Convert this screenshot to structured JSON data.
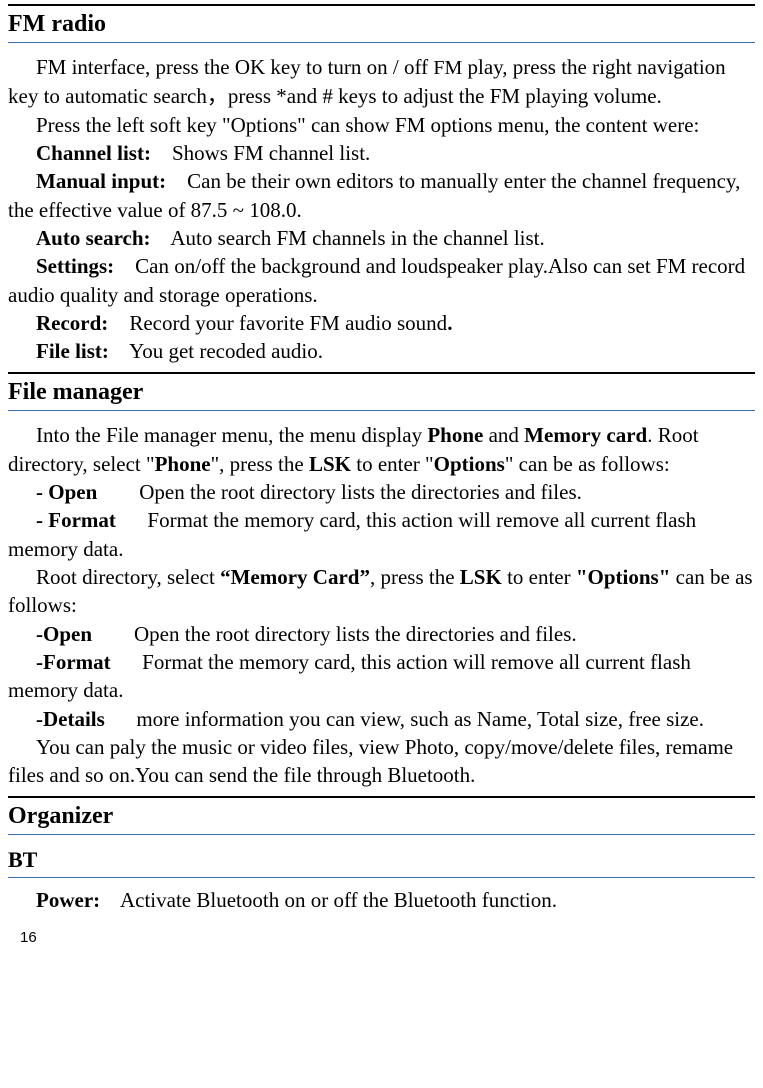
{
  "fm": {
    "title": "FM radio",
    "intro1a": "FM interface, press the OK key to turn on / off ",
    "intro1_small": "FM",
    "intro1b": " play, press the right navigation key to automatic search，press *and # keys to adjust the FM playing volume.",
    "intro2": "Press the left soft key \"Options\" can show FM options menu, the content were:",
    "items": [
      {
        "label": "Channel list:",
        "gap": "    ",
        "text": "Shows FM channel list."
      },
      {
        "label": "Manual input:",
        "gap": "    ",
        "text": "Can be their own editors to manually enter the channel frequency, the effective value of 87.5 ~ 108.0."
      },
      {
        "label": "Auto search:",
        "gap": "    ",
        "text": "Auto search FM channels in the channel list."
      },
      {
        "label": "Settings:",
        "gap": "    ",
        "text": "Can on/off the background and loudspeaker play.Also can set FM record audio quality and storage operations."
      },
      {
        "label": "Record:",
        "gap": "    ",
        "text": "Record your favorite FM audio sound",
        "trail_bold": "."
      },
      {
        "label": "File list:",
        "gap": "    ",
        "text": "You get recoded audio."
      }
    ]
  },
  "fileman": {
    "title": "File manager",
    "p1_a": "Into the File manager menu, the menu display ",
    "p1_b1": "Phone",
    "p1_c": " and ",
    "p1_b2": "Memory card",
    "p1_d": ". Root directory, select \"",
    "p1_b3": "Phone",
    "p1_e": "\", press the ",
    "p1_b4": "LSK",
    "p1_f": " to enter \"",
    "p1_b5": "Options",
    "p1_g": "\" can be as follows:",
    "open1_label": "- Open",
    "open1_gap": "        ",
    "open1_text": "Open the root directory lists the directories and files.",
    "format1_label": "- Format",
    "format1_gap": "      ",
    "format1_text": "Format the memory card, this action will remove all current flash memory data.",
    "p2_a": "Root directory, select ",
    "p2_b1": "“Memory Card”",
    "p2_b": ", press the ",
    "p2_b2": "LSK",
    "p2_c": " to enter ",
    "p2_b3": "\"Options\"",
    "p2_d": " can be as follows:",
    "open2_label": "-Open",
    "open2_gap": "        ",
    "open2_text": "Open the root directory lists the directories and files.",
    "format2_label": "-Format",
    "format2_gap": "      ",
    "format2_text": "Format the memory card, this action will remove all current flash memory data.",
    "details_label": "-Details",
    "details_gap": "      ",
    "details_text": "more information you can view, such as Name, Total size, free size.",
    "p3": "You can paly the music or video files, view Photo, copy/move/delete files, remame files and so on.You can send the file through Bluetooth."
  },
  "organizer": {
    "title": "Organizer"
  },
  "bt": {
    "title": "BT",
    "power_label": "Power:",
    "power_gap": "    ",
    "power_text": "Activate Bluetooth on or off the Bluetooth function."
  },
  "pagenum": "16"
}
